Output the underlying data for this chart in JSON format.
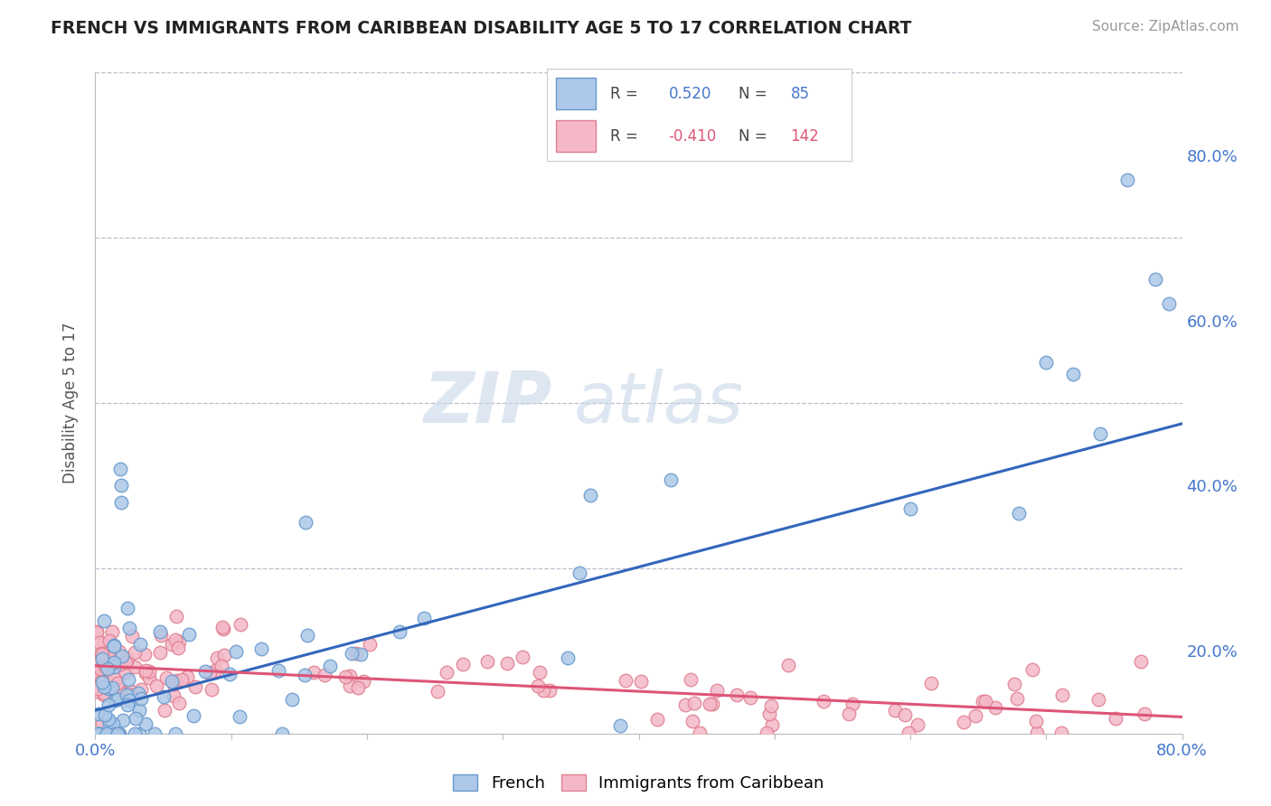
{
  "title": "FRENCH VS IMMIGRANTS FROM CARIBBEAN DISABILITY AGE 5 TO 17 CORRELATION CHART",
  "source": "Source: ZipAtlas.com",
  "ylabel": "Disability Age 5 to 17",
  "xlim": [
    0,
    0.8
  ],
  "ylim": [
    0,
    0.8
  ],
  "french_R": 0.52,
  "french_N": 85,
  "caribbean_R": -0.41,
  "caribbean_N": 142,
  "french_color": "#adc8e8",
  "french_edge_color": "#6699cc",
  "french_line_color": "#3366bb",
  "caribbean_color": "#f4b8c8",
  "caribbean_edge_color": "#e08090",
  "caribbean_line_color": "#dd5577",
  "background_color": "#ffffff",
  "title_color": "#222222",
  "tick_color": "#4477CC",
  "right_tick_color": "#4477CC",
  "legend_r_color_french": "#4477CC",
  "legend_r_color_caribbean": "#dd5577",
  "watermark_color": "#c8d8e8",
  "french_trend_x0": 0.0,
  "french_trend_y0": 0.028,
  "french_trend_x1": 0.8,
  "french_trend_y1": 0.375,
  "carib_trend_x0": 0.0,
  "carib_trend_y0": 0.082,
  "carib_trend_x1": 0.8,
  "carib_trend_y1": 0.02
}
